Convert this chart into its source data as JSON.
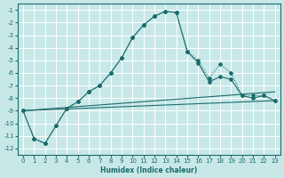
{
  "bg_color": "#c8e8e8",
  "grid_color": "#ffffff",
  "line_color": "#1a6b6b",
  "xlabel": "Humidex (Indice chaleur)",
  "xlim": [
    -0.5,
    23.5
  ],
  "ylim": [
    -12.5,
    -0.5
  ],
  "xticks": [
    0,
    1,
    2,
    3,
    4,
    5,
    6,
    7,
    8,
    9,
    10,
    11,
    12,
    13,
    14,
    15,
    16,
    17,
    18,
    19,
    20,
    21,
    22,
    23
  ],
  "yticks": [
    -1,
    -2,
    -3,
    -4,
    -5,
    -6,
    -7,
    -8,
    -9,
    -10,
    -11,
    -12
  ],
  "curve_dotted_x": [
    0,
    1,
    2,
    3,
    4,
    5,
    6,
    7,
    8,
    9,
    10,
    11,
    12,
    13,
    14,
    15,
    16,
    17,
    18,
    19,
    20,
    21,
    22,
    23
  ],
  "curve_dotted_y": [
    -9.0,
    -11.2,
    -11.6,
    -10.2,
    -8.8,
    -8.3,
    -7.5,
    -7.0,
    -6.0,
    -4.8,
    -3.2,
    -2.2,
    -1.5,
    -1.1,
    -1.2,
    -4.3,
    -5.0,
    -6.4,
    -5.3,
    -6.0,
    -7.8,
    -7.8,
    -7.8,
    -8.2
  ],
  "curve_solid_x": [
    0,
    1,
    2,
    3,
    4,
    5,
    6,
    7,
    8,
    9,
    10,
    11,
    12,
    13,
    14,
    15,
    16,
    17,
    18,
    19,
    20,
    21,
    22,
    23
  ],
  "curve_solid_y": [
    -9.0,
    -11.2,
    -11.6,
    -10.2,
    -8.8,
    -8.3,
    -7.5,
    -7.0,
    -6.0,
    -4.8,
    -3.2,
    -2.2,
    -1.5,
    -1.1,
    -1.2,
    -4.3,
    -5.2,
    -6.7,
    -6.3,
    -6.5,
    -7.8,
    -8.0,
    -7.8,
    -8.2
  ],
  "line1_x": [
    0,
    23
  ],
  "line1_y": [
    -9.0,
    -7.5
  ],
  "line2_x": [
    0,
    23
  ],
  "line2_y": [
    -9.0,
    -8.2
  ],
  "line3_x": [
    0,
    20
  ],
  "line3_y": [
    -9.0,
    -8.5
  ]
}
